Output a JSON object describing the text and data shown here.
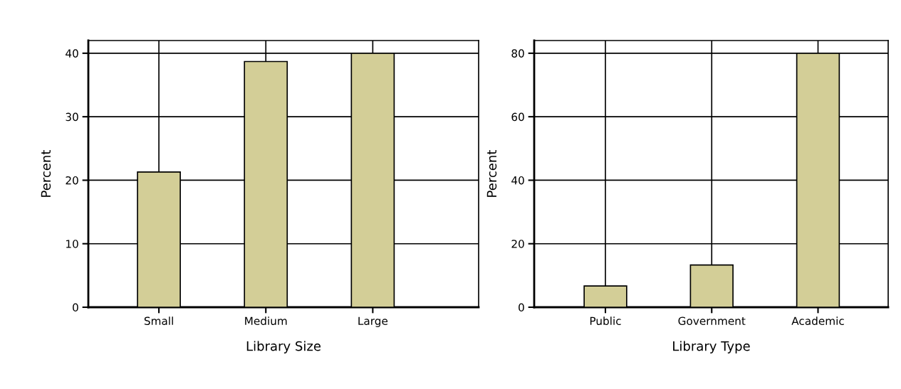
{
  "chart_data": [
    {
      "type": "bar",
      "xlabel": "Library Size",
      "ylabel": "Percent",
      "categories": [
        "Small",
        "Medium",
        "Large"
      ],
      "values": [
        21.3,
        38.7,
        40.0
      ],
      "color": "#d3ce97",
      "ylim": [
        0,
        42
      ],
      "yticks": [
        0,
        10,
        20,
        30,
        40
      ],
      "grid": true
    },
    {
      "type": "bar",
      "xlabel": "Library Type",
      "ylabel": "Percent",
      "categories": [
        "Public",
        "Government",
        "Academic"
      ],
      "values": [
        6.7,
        13.3,
        80.0
      ],
      "color": "#d3ce97",
      "ylim": [
        0,
        84
      ],
      "yticks": [
        0,
        20,
        40,
        60,
        80
      ],
      "grid": true
    }
  ]
}
